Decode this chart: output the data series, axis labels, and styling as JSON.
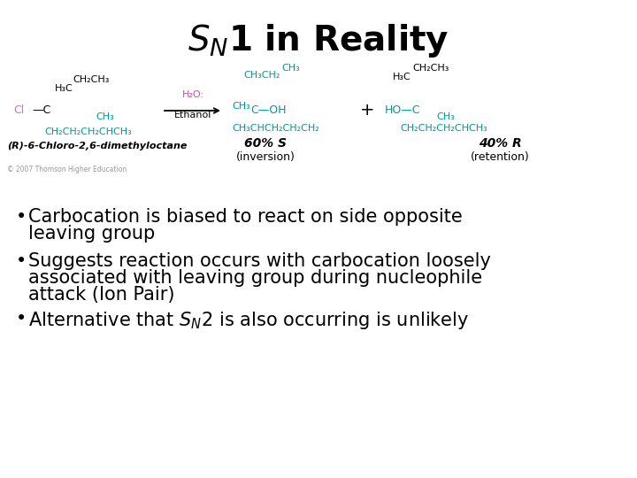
{
  "background_color": "#ffffff",
  "text_color": "#000000",
  "pink_color": "#e060e0",
  "teal_color": "#009999",
  "magenta_color": "#cc44cc",
  "black_color": "#000000",
  "gray_color": "#999999",
  "title_fontsize": 28,
  "bullet_fontsize": 15,
  "chem_fontsize": 8,
  "label_left": "(R)-6-Chloro-2,6-dimethyloctane",
  "label_mid1": "60% S",
  "label_mid2": "(inversion)",
  "label_right1": "40% R",
  "label_right2": "(retention)",
  "copyright": "© 2007 Thomson Higher Education",
  "ethanol_label": "Ethanol",
  "h2o_label": "H₂O:",
  "plus_sign": "+"
}
